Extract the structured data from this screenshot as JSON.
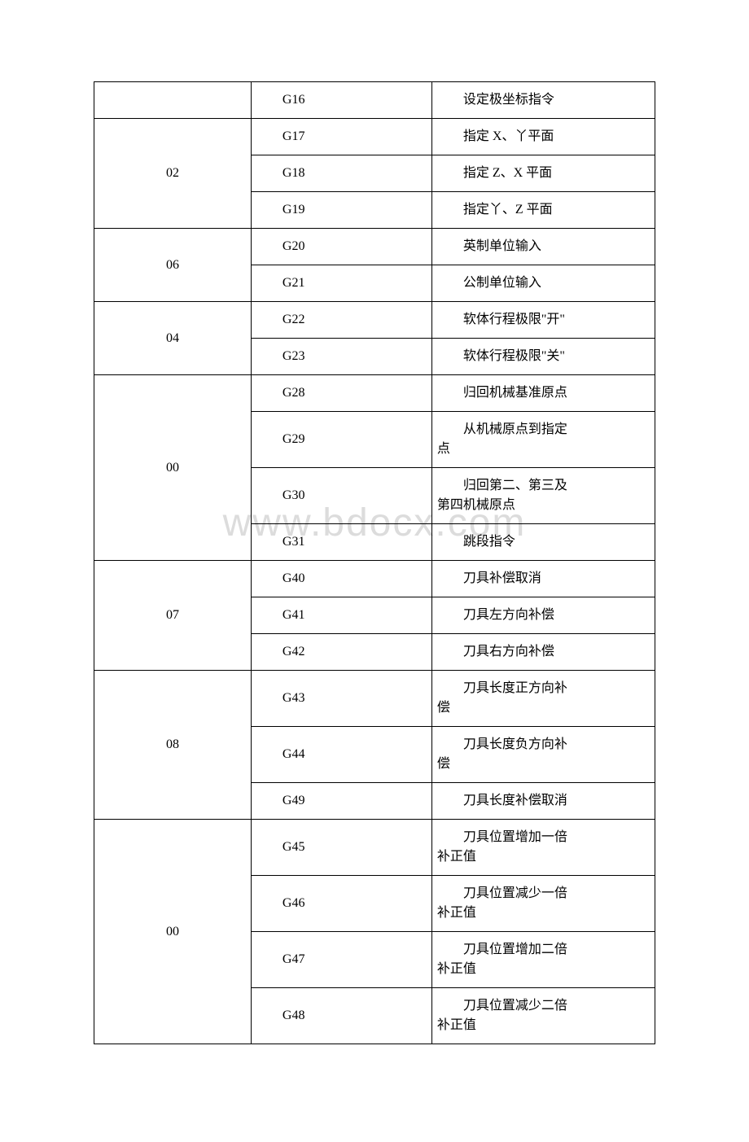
{
  "watermark": "www.bdocx.com",
  "table": {
    "columns": [
      "group",
      "code",
      "description"
    ],
    "col_widths": [
      "29%",
      "29%",
      "42%"
    ],
    "border_color": "#000000",
    "font_family": "SimSun",
    "font_size_pt": 12,
    "background_color": "#ffffff",
    "groups": [
      {
        "label": "",
        "rows": [
          {
            "code": "G16",
            "desc": "设定极坐标指令"
          }
        ]
      },
      {
        "label": "02",
        "rows": [
          {
            "code": "G17",
            "desc": "指定 X、丫平面"
          },
          {
            "code": "G18",
            "desc": "指定 Z、X 平面"
          },
          {
            "code": "G19",
            "desc": "指定丫、Z 平面"
          }
        ]
      },
      {
        "label": "06",
        "rows": [
          {
            "code": "G20",
            "desc": "英制单位输入"
          },
          {
            "code": "G21",
            "desc": "公制单位输入"
          }
        ]
      },
      {
        "label": "04",
        "rows": [
          {
            "code": "G22",
            "desc": "软体行程极限\"开\""
          },
          {
            "code": "G23",
            "desc": "软体行程极限\"关\""
          }
        ]
      },
      {
        "label": "00",
        "rows": [
          {
            "code": "G28",
            "desc": "归回机械基准原点"
          },
          {
            "code": "G29",
            "desc_first": "从机械原点到指定",
            "desc_rest": "点"
          },
          {
            "code": "G30",
            "desc_first": "归回第二、第三及",
            "desc_rest": "第四机械原点"
          },
          {
            "code": "G31",
            "desc": "跳段指令"
          }
        ]
      },
      {
        "label": "07",
        "rows": [
          {
            "code": "G40",
            "desc": "刀具补偿取消"
          },
          {
            "code": "G41",
            "desc": "刀具左方向补偿"
          },
          {
            "code": "G42",
            "desc": "刀具右方向补偿"
          }
        ]
      },
      {
        "label": "08",
        "rows": [
          {
            "code": "G43",
            "desc_first": "刀具长度正方向补",
            "desc_rest": "偿"
          },
          {
            "code": "G44",
            "desc_first": "刀具长度负方向补",
            "desc_rest": "偿"
          },
          {
            "code": "G49",
            "desc": "刀具长度补偿取消"
          }
        ]
      },
      {
        "label": "00",
        "rows": [
          {
            "code": "G45",
            "desc_first": "刀具位置增加一倍",
            "desc_rest": "补正值"
          },
          {
            "code": "G46",
            "desc_first": "刀具位置减少一倍",
            "desc_rest": "补正值"
          },
          {
            "code": "G47",
            "desc_first": "刀具位置增加二倍",
            "desc_rest": "补正值"
          },
          {
            "code": "G48",
            "desc_first": "刀具位置减少二倍",
            "desc_rest": "补正值"
          }
        ]
      }
    ]
  }
}
